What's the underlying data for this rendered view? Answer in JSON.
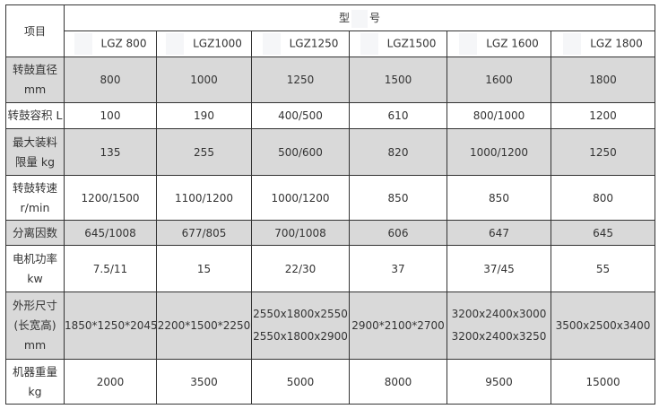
{
  "header": {
    "item": "项目",
    "model_left": "型",
    "model_right": "号",
    "models": [
      "LGZ 800",
      "LGZ1000",
      "LGZ1250",
      "LGZ1500",
      "LGZ 1600",
      "LGZ 1800"
    ]
  },
  "rows": [
    {
      "label": [
        "转鼓直径",
        "mm"
      ],
      "values": [
        "800",
        "1000",
        "1250",
        "1500",
        "1600",
        "1800"
      ],
      "shade": true
    },
    {
      "label": [
        "转鼓容积 L"
      ],
      "values": [
        "100",
        "190",
        "400/500",
        "610",
        "800/1000",
        "1200"
      ],
      "shade": false
    },
    {
      "label": [
        "最大装料",
        "限量 kg"
      ],
      "values": [
        "135",
        "255",
        "500/600",
        "820",
        "1000/1200",
        "1250"
      ],
      "shade": true
    },
    {
      "label": [
        "转鼓转速",
        "r/min"
      ],
      "values": [
        "1200/1500",
        "1100/1200",
        "1000/1200",
        "850",
        "850",
        "800"
      ],
      "shade": false
    },
    {
      "label": [
        "分离因数"
      ],
      "values": [
        "645/1008",
        "677/805",
        "700/1008",
        "606",
        "647",
        "645"
      ],
      "shade": true
    },
    {
      "label": [
        "电机功率",
        "kw"
      ],
      "values": [
        "7.5/11",
        "15",
        "22/30",
        "37",
        "37/45",
        "55"
      ],
      "shade": false
    },
    {
      "label": [
        "外形尺寸",
        "(长宽高)",
        "mm"
      ],
      "values": [
        "1850*1250*2045",
        "2200*1500*2250",
        "2550x1800x2550\n2550x1800x2900",
        "2900*2100*2700",
        "3200x2400x3000\n3200x2400x3250",
        "3500x2500x3400"
      ],
      "shade": true
    },
    {
      "label": [
        "机器重量",
        "kg"
      ],
      "values": [
        "2000",
        "3500",
        "5000",
        "8000",
        "9500",
        "15000"
      ],
      "shade": false
    }
  ],
  "colors": {
    "shade": "#d9d9d9",
    "border": "#333333"
  }
}
